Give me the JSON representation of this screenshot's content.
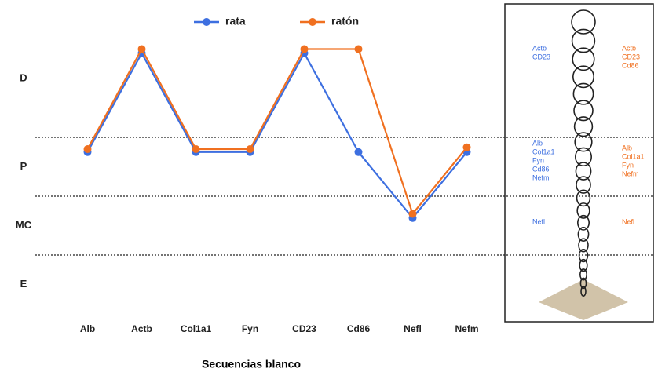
{
  "chart_data": {
    "type": "line",
    "categories": [
      "Alb",
      "Actb",
      "Col1a1",
      "Fyn",
      "CD23",
      "Cd86",
      "Nefl",
      "Nefm"
    ],
    "series": [
      {
        "name": "rata",
        "color": "#3d6fe0",
        "values": [
          2.75,
          4.43,
          2.75,
          2.75,
          4.43,
          2.75,
          1.63,
          2.75
        ]
      },
      {
        "name": "ratón",
        "color": "#f07020",
        "values": [
          2.8,
          4.5,
          2.8,
          2.8,
          4.5,
          4.5,
          1.7,
          2.83
        ]
      }
    ],
    "ylim": [
      0,
      5.2
    ],
    "yticks": [
      {
        "value": 0.5,
        "label": "E"
      },
      {
        "value": 1.5,
        "label": "MC"
      },
      {
        "value": 2.5,
        "label": "P"
      },
      {
        "value": 4,
        "label": "D"
      }
    ],
    "zone_boundaries": [
      1,
      2,
      3
    ],
    "xlabel": "Secuencias blanco",
    "legend": "top"
  },
  "diagram": {
    "zones": [
      {
        "rata": [
          "Actb",
          "CD23"
        ],
        "raton": [
          "Actb",
          "CD23",
          "Cd86"
        ]
      },
      {
        "rata": [
          "Alb",
          "Col1a1",
          "Fyn",
          "Cd86",
          "Nefm"
        ],
        "raton": [
          "Alb",
          "Col1a1",
          "Fyn",
          "Nefm"
        ]
      },
      {
        "rata": [
          "Nefl"
        ],
        "raton": [
          "Nefl"
        ]
      }
    ]
  }
}
